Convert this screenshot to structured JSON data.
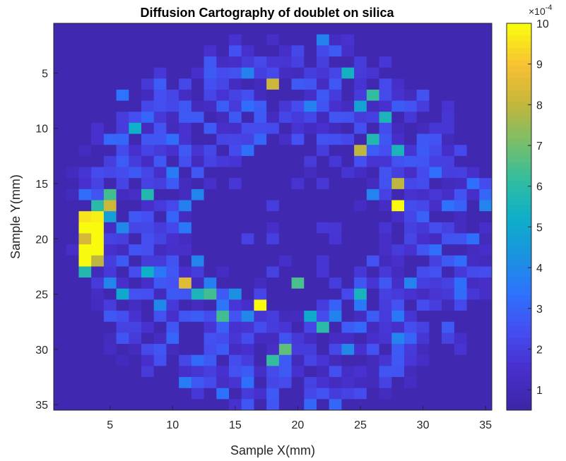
{
  "chart_data": {
    "type": "heatmap",
    "title": "Diffusion Cartography of doublet on silica",
    "xlabel": "Sample X(mm)",
    "ylabel": "Sample Y(mm)",
    "xlim": [
      0.5,
      35.5
    ],
    "ylim": [
      0.5,
      35.5
    ],
    "y_reversed": true,
    "x_ticks": [
      5,
      10,
      15,
      20,
      25,
      30,
      35
    ],
    "y_ticks": [
      5,
      10,
      15,
      20,
      25,
      30,
      35
    ],
    "x_tick_labels": [
      "5",
      "10",
      "15",
      "20",
      "25",
      "30",
      "35"
    ],
    "y_tick_labels": [
      "5",
      "10",
      "15",
      "20",
      "25",
      "30",
      "35"
    ],
    "colorbar": {
      "range": [
        0.5,
        10
      ],
      "ticks": [
        1,
        2,
        3,
        4,
        5,
        6,
        7,
        8,
        9,
        10
      ],
      "tick_labels": [
        "1",
        "2",
        "3",
        "4",
        "5",
        "6",
        "7",
        "8",
        "9",
        "10"
      ],
      "multiplier": "×10",
      "multiplier_exponent": "-4",
      "colormap": "parula"
    },
    "grid": false,
    "background_value": 0.7,
    "nonzero_cells": [
      [
        1,
        22,
        3.5
      ],
      [
        2,
        21,
        1.8
      ],
      [
        2,
        19,
        1.5
      ],
      [
        3,
        20,
        1.8
      ],
      [
        3,
        14,
        1.6
      ],
      [
        3,
        15,
        1.7
      ],
      [
        4,
        8,
        1.6
      ],
      [
        4,
        12,
        1.3
      ],
      [
        6,
        10,
        1.6
      ],
      [
        6,
        20,
        1.6
      ],
      [
        6,
        25,
        1.5
      ],
      [
        6,
        30,
        1.8
      ],
      [
        6,
        35,
        1.3
      ],
      [
        8,
        14,
        3.8
      ],
      [
        8,
        16,
        1.7
      ],
      [
        8,
        18,
        1.8
      ],
      [
        8,
        23,
        1.7
      ],
      [
        10,
        12,
        1.8
      ],
      [
        10,
        15,
        1.8
      ],
      [
        10,
        18,
        2.2
      ],
      [
        10,
        21,
        1.8
      ],
      [
        10,
        31,
        3.4
      ],
      [
        10,
        35,
        1.6
      ],
      [
        12,
        11,
        1.7
      ],
      [
        12,
        18,
        1.7
      ],
      [
        12,
        24,
        3.2
      ],
      [
        12,
        25,
        1.6
      ],
      [
        14,
        20,
        1.6
      ],
      [
        14,
        25,
        2.5
      ],
      [
        14,
        26,
        1.8
      ],
      [
        14,
        30,
        1.5
      ],
      [
        14,
        31,
        2.3
      ],
      [
        14,
        32,
        1.8
      ],
      [
        16,
        25,
        3.1
      ],
      [
        16,
        32,
        2.2
      ],
      [
        16,
        33,
        1.7
      ],
      [
        16,
        34,
        3.0
      ],
      [
        18,
        13,
        3.0
      ],
      [
        18,
        15,
        1.5
      ],
      [
        18,
        18,
        3.0
      ],
      [
        18,
        20,
        2.6
      ],
      [
        18,
        25,
        2.2
      ],
      [
        20,
        13,
        1.8
      ],
      [
        20,
        16,
        1.8
      ],
      [
        20,
        21,
        1.7
      ],
      [
        22,
        13,
        3.6
      ],
      [
        22,
        23,
        2.7
      ],
      [
        22,
        24,
        1.6
      ],
      [
        22,
        27,
        2.4
      ],
      [
        22,
        28,
        3.6
      ],
      [
        24,
        12,
        1.7
      ],
      [
        24,
        13,
        2.1
      ],
      [
        24,
        18,
        1.7
      ],
      [
        24,
        19,
        2.3
      ],
      [
        24,
        21,
        1.6
      ],
      [
        26,
        14,
        2.5
      ],
      [
        26,
        17,
        1.5
      ],
      [
        26,
        20,
        2.0
      ],
      [
        26,
        28,
        1.8
      ],
      [
        26,
        33,
        1.6
      ],
      [
        28,
        6,
        2.0
      ],
      [
        28,
        13,
        2.2
      ],
      [
        28,
        15,
        2.7
      ],
      [
        28,
        24,
        2.5
      ],
      [
        28,
        25,
        1.7
      ],
      [
        28,
        29,
        1.5
      ],
      [
        28,
        31,
        1.8
      ],
      [
        30,
        6,
        2.1
      ],
      [
        30,
        9,
        1.8
      ],
      [
        30,
        13,
        1.8
      ],
      [
        30,
        17,
        1.7
      ],
      [
        30,
        18,
        2.6
      ],
      [
        30,
        19,
        2.5
      ],
      [
        30,
        21,
        1.6
      ],
      [
        30,
        24,
        3.5
      ],
      [
        32,
        8,
        2.2
      ],
      [
        32,
        10,
        1.8
      ],
      [
        32,
        15,
        1.5
      ],
      [
        32,
        18,
        1.9
      ],
      [
        32,
        27,
        1.8
      ],
      [
        32,
        33,
        2.2
      ],
      [
        32,
        34,
        1.8
      ],
      [
        34,
        5,
        1.8
      ],
      [
        34,
        10,
        1.7
      ],
      [
        34,
        14,
        1.8
      ],
      [
        34,
        18,
        2.3
      ],
      [
        34,
        20,
        2.1
      ],
      [
        34,
        23,
        2.0
      ],
      [
        34,
        26,
        1.9
      ],
      [
        34,
        28,
        1.6
      ],
      [
        34,
        35,
        1.4
      ],
      [
        36,
        7,
        1.7
      ],
      [
        36,
        11,
        2.0
      ],
      [
        36,
        13,
        2.2
      ],
      [
        36,
        20,
        1.5
      ],
      [
        36,
        24,
        1.9
      ],
      [
        36,
        31,
        1.6
      ],
      [
        38,
        12,
        1.6
      ],
      [
        38,
        14,
        1.9
      ],
      [
        38,
        18,
        2.1
      ],
      [
        38,
        20,
        2.8
      ],
      [
        38,
        29,
        1.5
      ],
      [
        40,
        5,
        1.8
      ],
      [
        40,
        7,
        1.6
      ],
      [
        40,
        8,
        2.0
      ],
      [
        40,
        16,
        2.4
      ],
      [
        40,
        17,
        2.3
      ],
      [
        40,
        20,
        1.5
      ],
      [
        40,
        25,
        1.9
      ],
      [
        40,
        30,
        3.4
      ],
      [
        40,
        31,
        3.4
      ],
      [
        40,
        32,
        3.0
      ],
      [
        42,
        8,
        1.8
      ],
      [
        42,
        15,
        1.6
      ],
      [
        42,
        17,
        2.3
      ],
      [
        42,
        21,
        1.7
      ],
      [
        42,
        26,
        1.5
      ],
      [
        42,
        30,
        1.7
      ],
      [
        42,
        33,
        2.1
      ],
      [
        44,
        13,
        2.2
      ],
      [
        44,
        16,
        2.8
      ],
      [
        44,
        20,
        1.8
      ],
      [
        44,
        27,
        1.7
      ],
      [
        44,
        30,
        1.6
      ],
      [
        44,
        33,
        2.5
      ],
      [
        46,
        10,
        1.5
      ],
      [
        46,
        16,
        2.2
      ],
      [
        46,
        18,
        1.9
      ],
      [
        46,
        30,
        2.4
      ],
      [
        46,
        32,
        3.5
      ],
      [
        48,
        12,
        1.7
      ],
      [
        48,
        14,
        1.8
      ],
      [
        48,
        18,
        2.3
      ],
      [
        48,
        20,
        1.6
      ],
      [
        50,
        12,
        1.6
      ],
      [
        50,
        14,
        1.4
      ],
      [
        50,
        19,
        1.6
      ],
      [
        52,
        11,
        1.6
      ],
      [
        52,
        13,
        2.1
      ],
      [
        52,
        16,
        1.5
      ],
      [
        52,
        21,
        1.6
      ],
      [
        52,
        27,
        1.6
      ],
      [
        52,
        30,
        1.5
      ],
      [
        52,
        32,
        1.7
      ],
      [
        54,
        15,
        1.7
      ],
      [
        54,
        19,
        1.8
      ],
      [
        54,
        25,
        2.3
      ],
      [
        54,
        28,
        1.7
      ],
      [
        54,
        30,
        2.2
      ],
      [
        56,
        8,
        2.3
      ],
      [
        56,
        12,
        1.7
      ],
      [
        56,
        14,
        2.6
      ],
      [
        56,
        17,
        3.1
      ],
      [
        56,
        21,
        2.0
      ],
      [
        56,
        31,
        1.7
      ],
      [
        56,
        33,
        1.9
      ],
      [
        58,
        8,
        2.2
      ],
      [
        58,
        11,
        1.7
      ],
      [
        58,
        13,
        2.2
      ],
      [
        58,
        17,
        1.9
      ],
      [
        58,
        26,
        2.5
      ],
      [
        58,
        31,
        1.5
      ],
      [
        60,
        8,
        1.6
      ],
      [
        60,
        12,
        1.7
      ],
      [
        60,
        14,
        1.8
      ],
      [
        60,
        15,
        1.9
      ],
      [
        60,
        17,
        2.3
      ],
      [
        60,
        21,
        1.6
      ],
      [
        60,
        33,
        1.6
      ],
      [
        62,
        7,
        1.6
      ],
      [
        62,
        11,
        1.7
      ],
      [
        62,
        15,
        2.5
      ],
      [
        62,
        20,
        1.7
      ],
      [
        62,
        23,
        1.8
      ],
      [
        62,
        26,
        2.4
      ],
      [
        62,
        31,
        1.6
      ],
      [
        64,
        9,
        1.7
      ],
      [
        64,
        10,
        1.9
      ],
      [
        64,
        13,
        1.6
      ],
      [
        64,
        20,
        1.8
      ],
      [
        64,
        27,
        1.9
      ],
      [
        64,
        29,
        1.6
      ],
      [
        66,
        6,
        3.0
      ],
      [
        66,
        11,
        2.4
      ],
      [
        66,
        13,
        2.5
      ],
      [
        66,
        14,
        1.9
      ],
      [
        66,
        16,
        2.1
      ],
      [
        66,
        21,
        1.7
      ],
      [
        66,
        25,
        1.6
      ],
      [
        66,
        30,
        1.8
      ],
      [
        68,
        11,
        2.4
      ],
      [
        68,
        16,
        1.8
      ],
      [
        68,
        21,
        1.9
      ],
      [
        68,
        26,
        1.6
      ],
      [
        68,
        29,
        2.1
      ],
      [
        68,
        31,
        2.1
      ],
      [
        70,
        8,
        1.9
      ],
      [
        70,
        12,
        2.1
      ],
      [
        70,
        15,
        2.4
      ],
      [
        70,
        18,
        1.8
      ],
      [
        70,
        24,
        2.2
      ],
      [
        70,
        29,
        1.8
      ],
      [
        72,
        10,
        1.6
      ],
      [
        72,
        14,
        1.7
      ],
      [
        72,
        21,
        1.7
      ],
      [
        74,
        11,
        1.8
      ],
      [
        74,
        15,
        2.3
      ],
      [
        74,
        16,
        2.1
      ],
      [
        74,
        19,
        1.6
      ],
      [
        74,
        25,
        1.6
      ],
      [
        74,
        27,
        1.6
      ],
      [
        74,
        30,
        1.5
      ],
      [
        76,
        17,
        1.5
      ],
      [
        76,
        18,
        1.9
      ],
      [
        76,
        24,
        2.3
      ],
      [
        78,
        12,
        1.6
      ],
      [
        78,
        13,
        1.8
      ],
      [
        78,
        22,
        1.7
      ],
      [
        78,
        31,
        1.7
      ],
      [
        80,
        8,
        2.0
      ],
      [
        80,
        11,
        1.7
      ],
      [
        80,
        15,
        1.9
      ],
      [
        82,
        12,
        2.1
      ],
      [
        82,
        22,
        1.9
      ],
      [
        84,
        13,
        1.6
      ],
      [
        84,
        16,
        1.7
      ],
      [
        86,
        10,
        1.5
      ],
      [
        86,
        16,
        1.8
      ],
      [
        86,
        20,
        1.6
      ],
      [
        86,
        25,
        1.5
      ],
      [
        86,
        29,
        1.8
      ],
      [
        88,
        15,
        1.7
      ],
      [
        88,
        19,
        1.6
      ],
      [
        88,
        21,
        1.5
      ],
      [
        90,
        14,
        1.7
      ],
      [
        90,
        18,
        1.8
      ],
      [
        90,
        21,
        1.6
      ],
      [
        90,
        28,
        1.7
      ],
      [
        92,
        15,
        1.6
      ],
      [
        92,
        20,
        1.6
      ],
      [
        92,
        24,
        1.5
      ],
      [
        94,
        9,
        1.8
      ],
      [
        94,
        16,
        1.8
      ],
      [
        94,
        19,
        1.7
      ],
      [
        94,
        22,
        1.8
      ],
      [
        94,
        27,
        1.6
      ],
      [
        96,
        10,
        1.6
      ],
      [
        96,
        13,
        1.7
      ],
      [
        96,
        18,
        1.7
      ],
      [
        96,
        23,
        1.6
      ],
      [
        96,
        31,
        1.5
      ],
      [
        98,
        13,
        1.9
      ],
      [
        98,
        16,
        1.8
      ],
      [
        98,
        21,
        1.6
      ],
      [
        98,
        22,
        1.7
      ],
      [
        98,
        24,
        1.8
      ],
      [
        98,
        26,
        1.5
      ],
      [
        100,
        10,
        1.9
      ],
      [
        100,
        14,
        2.0
      ],
      [
        100,
        18,
        1.6
      ],
      [
        100,
        23,
        1.7
      ],
      [
        100,
        24,
        2.0
      ]
    ],
    "bright_cells": [
      [
        3,
        18,
        9.6
      ],
      [
        3,
        19,
        10.0
      ],
      [
        3,
        20,
        8.4
      ],
      [
        3,
        21,
        10.0
      ],
      [
        3,
        22,
        10.0
      ],
      [
        3,
        23,
        5.8
      ],
      [
        4,
        17,
        6.0
      ],
      [
        4,
        18,
        9.8
      ],
      [
        4,
        19,
        10.0
      ],
      [
        4,
        20,
        10.0
      ],
      [
        4,
        21,
        10.0
      ],
      [
        4,
        22,
        8.0
      ],
      [
        5,
        17,
        8.2
      ],
      [
        5,
        16,
        6.4
      ],
      [
        5,
        18,
        4.6
      ],
      [
        6,
        25,
        5.0
      ],
      [
        6,
        7,
        3.4
      ],
      [
        7,
        10,
        5.2
      ],
      [
        8,
        16,
        5.8
      ],
      [
        8,
        23,
        5.2
      ],
      [
        11,
        24,
        8.6
      ],
      [
        12,
        25,
        5.6
      ],
      [
        13,
        25,
        6.4
      ],
      [
        14,
        27,
        6.4
      ],
      [
        15,
        25,
        4.2
      ],
      [
        16,
        5,
        3.8
      ],
      [
        17,
        26,
        10.0
      ],
      [
        18,
        6,
        8.2
      ],
      [
        18,
        31,
        6.2
      ],
      [
        19,
        30,
        6.8
      ],
      [
        20,
        24,
        6.5
      ],
      [
        21,
        27,
        5.0
      ],
      [
        22,
        2,
        3.8
      ],
      [
        22,
        28,
        6.0
      ],
      [
        23,
        27,
        3.8
      ],
      [
        24,
        5,
        5.4
      ],
      [
        25,
        12,
        8.0
      ],
      [
        25,
        25,
        5.5
      ],
      [
        25,
        8,
        4.8
      ],
      [
        26,
        7,
        6.2
      ],
      [
        26,
        11,
        5.8
      ],
      [
        27,
        9,
        5.6
      ],
      [
        28,
        12,
        5.6
      ],
      [
        28,
        15,
        8.0
      ],
      [
        28,
        17,
        10.0
      ],
      [
        24,
        30,
        4.0
      ]
    ]
  }
}
